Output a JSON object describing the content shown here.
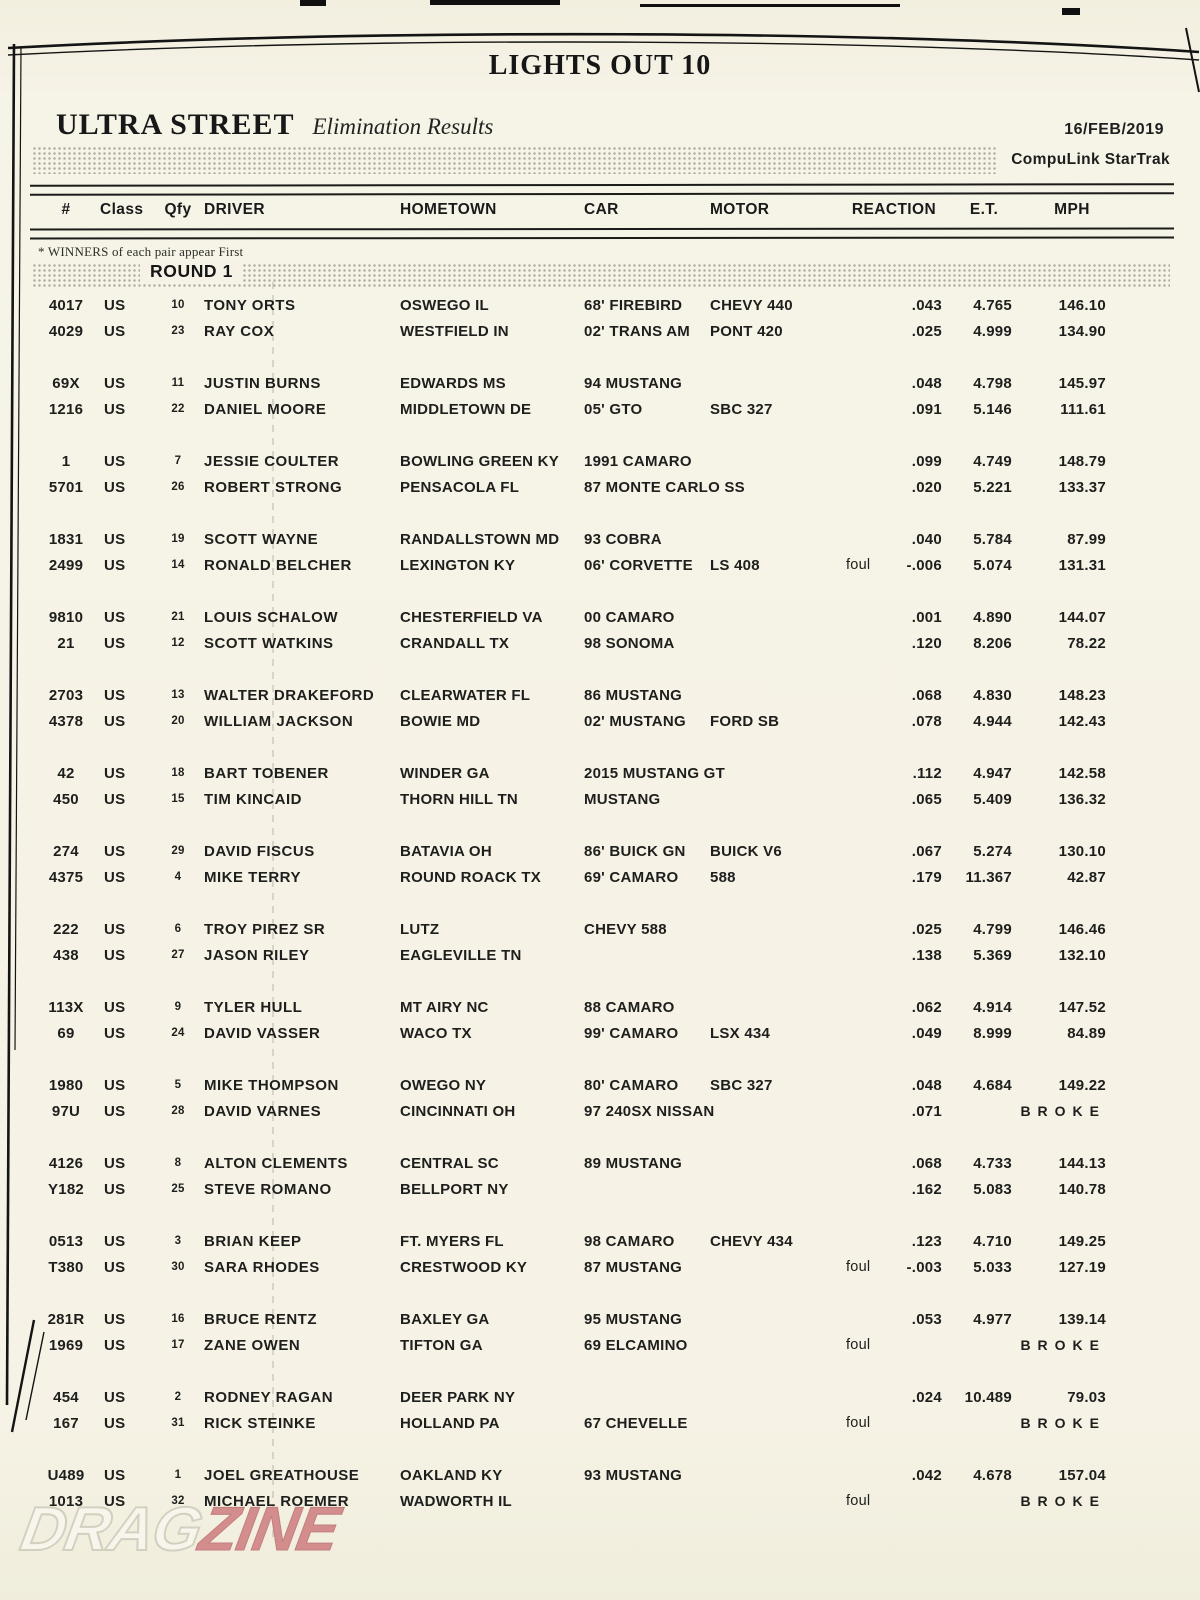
{
  "page": {
    "event_title": "LIGHTS OUT 10",
    "class_title": "ULTRA STREET",
    "subtitle": "Elimination Results",
    "date": "16/FEB/2019",
    "timing_brand": "CompuLink  StarTrak",
    "note": "* WINNERS of each pair appear First",
    "round_label": "ROUND 1"
  },
  "columns": {
    "num": "#",
    "cls": "Class",
    "qfy": "Qfy",
    "driver": "DRIVER",
    "home": "HOMETOWN",
    "car": "CAR",
    "motor": "MOTOR",
    "react": "REACTION",
    "et": "E.T.",
    "mph": "MPH"
  },
  "labels": {
    "broke": "BROKE"
  },
  "watermark": {
    "part1": "DRAG",
    "part2": "ZINE"
  },
  "rows": [
    {
      "num": "4017",
      "cls": "US",
      "qfy": "10",
      "driver": "TONY ORTS",
      "home": "OSWEGO IL",
      "car": "68' FIREBIRD",
      "motor": "CHEVY 440",
      "foul": "",
      "re": ".043",
      "et": "4.765",
      "mph": "146.10",
      "broke": false
    },
    {
      "num": "4029",
      "cls": "US",
      "qfy": "23",
      "driver": "RAY COX",
      "home": "WESTFIELD IN",
      "car": "02' TRANS AM",
      "motor": "PONT 420",
      "foul": "",
      "re": ".025",
      "et": "4.999",
      "mph": "134.90",
      "broke": false
    },
    {
      "num": "69X",
      "cls": "US",
      "qfy": "11",
      "driver": "JUSTIN BURNS",
      "home": "EDWARDS MS",
      "car": "94 MUSTANG",
      "motor": "",
      "foul": "",
      "re": ".048",
      "et": "4.798",
      "mph": "145.97",
      "broke": false
    },
    {
      "num": "1216",
      "cls": "US",
      "qfy": "22",
      "driver": "DANIEL MOORE",
      "home": "MIDDLETOWN DE",
      "car": "05' GTO",
      "motor": "SBC 327",
      "foul": "",
      "re": ".091",
      "et": "5.146",
      "mph": "111.61",
      "broke": false
    },
    {
      "num": "1",
      "cls": "US",
      "qfy": "7",
      "driver": "JESSIE COULTER",
      "home": "BOWLING GREEN KY",
      "car": "1991 CAMARO",
      "motor": "",
      "foul": "",
      "re": ".099",
      "et": "4.749",
      "mph": "148.79",
      "broke": false
    },
    {
      "num": "5701",
      "cls": "US",
      "qfy": "26",
      "driver": "ROBERT STRONG",
      "home": "PENSACOLA FL",
      "car": "87 MONTE CARLO SS",
      "motor": "",
      "foul": "",
      "re": ".020",
      "et": "5.221",
      "mph": "133.37",
      "broke": false
    },
    {
      "num": "1831",
      "cls": "US",
      "qfy": "19",
      "driver": "SCOTT WAYNE",
      "home": "RANDALLSTOWN MD",
      "car": "93 COBRA",
      "motor": "",
      "foul": "",
      "re": ".040",
      "et": "5.784",
      "mph": "87.99",
      "broke": false
    },
    {
      "num": "2499",
      "cls": "US",
      "qfy": "14",
      "driver": "RONALD BELCHER",
      "home": "LEXINGTON KY",
      "car": "06' CORVETTE",
      "motor": "LS 408",
      "foul": "foul",
      "re": "-.006",
      "et": "5.074",
      "mph": "131.31",
      "broke": false
    },
    {
      "num": "9810",
      "cls": "US",
      "qfy": "21",
      "driver": "LOUIS SCHALOW",
      "home": "CHESTERFIELD VA",
      "car": "00 CAMARO",
      "motor": "",
      "foul": "",
      "re": ".001",
      "et": "4.890",
      "mph": "144.07",
      "broke": false
    },
    {
      "num": "21",
      "cls": "US",
      "qfy": "12",
      "driver": "SCOTT WATKINS",
      "home": "CRANDALL TX",
      "car": "98 SONOMA",
      "motor": "",
      "foul": "",
      "re": ".120",
      "et": "8.206",
      "mph": "78.22",
      "broke": false
    },
    {
      "num": "2703",
      "cls": "US",
      "qfy": "13",
      "driver": "WALTER DRAKEFORD",
      "home": "CLEARWATER FL",
      "car": "86 MUSTANG",
      "motor": "",
      "foul": "",
      "re": ".068",
      "et": "4.830",
      "mph": "148.23",
      "broke": false
    },
    {
      "num": "4378",
      "cls": "US",
      "qfy": "20",
      "driver": "WILLIAM JACKSON",
      "home": "BOWIE MD",
      "car": "02' MUSTANG",
      "motor": "FORD SB",
      "foul": "",
      "re": ".078",
      "et": "4.944",
      "mph": "142.43",
      "broke": false
    },
    {
      "num": "42",
      "cls": "US",
      "qfy": "18",
      "driver": "BART TOBENER",
      "home": "WINDER GA",
      "car": "2015 MUSTANG GT",
      "motor": "",
      "foul": "",
      "re": ".112",
      "et": "4.947",
      "mph": "142.58",
      "broke": false
    },
    {
      "num": "450",
      "cls": "US",
      "qfy": "15",
      "driver": "TIM KINCAID",
      "home": "THORN HILL TN",
      "car": "MUSTANG",
      "motor": "",
      "foul": "",
      "re": ".065",
      "et": "5.409",
      "mph": "136.32",
      "broke": false
    },
    {
      "num": "274",
      "cls": "US",
      "qfy": "29",
      "driver": "DAVID FISCUS",
      "home": "BATAVIA OH",
      "car": "86' BUICK GN",
      "motor": "BUICK V6",
      "foul": "",
      "re": ".067",
      "et": "5.274",
      "mph": "130.10",
      "broke": false
    },
    {
      "num": "4375",
      "cls": "US",
      "qfy": "4",
      "driver": "MIKE TERRY",
      "home": "ROUND ROACK TX",
      "car": "69' CAMARO",
      "motor": "588",
      "foul": "",
      "re": ".179",
      "et": "11.367",
      "mph": "42.87",
      "broke": false
    },
    {
      "num": "222",
      "cls": "US",
      "qfy": "6",
      "driver": "TROY PIREZ SR",
      "home": "LUTZ",
      "car": "CHEVY 588",
      "motor": "",
      "foul": "",
      "re": ".025",
      "et": "4.799",
      "mph": "146.46",
      "broke": false
    },
    {
      "num": "438",
      "cls": "US",
      "qfy": "27",
      "driver": "JASON RILEY",
      "home": "EAGLEVILLE TN",
      "car": "",
      "motor": "",
      "foul": "",
      "re": ".138",
      "et": "5.369",
      "mph": "132.10",
      "broke": false
    },
    {
      "num": "113X",
      "cls": "US",
      "qfy": "9",
      "driver": "TYLER HULL",
      "home": "MT AIRY NC",
      "car": "88 CAMARO",
      "motor": "",
      "foul": "",
      "re": ".062",
      "et": "4.914",
      "mph": "147.52",
      "broke": false
    },
    {
      "num": "69",
      "cls": "US",
      "qfy": "24",
      "driver": "DAVID VASSER",
      "home": "WACO TX",
      "car": "99' CAMARO",
      "motor": "LSX 434",
      "foul": "",
      "re": ".049",
      "et": "8.999",
      "mph": "84.89",
      "broke": false
    },
    {
      "num": "1980",
      "cls": "US",
      "qfy": "5",
      "driver": "MIKE THOMPSON",
      "home": "OWEGO NY",
      "car": "80' CAMARO",
      "motor": "SBC 327",
      "foul": "",
      "re": ".048",
      "et": "4.684",
      "mph": "149.22",
      "broke": false
    },
    {
      "num": "97U",
      "cls": "US",
      "qfy": "28",
      "driver": "DAVID VARNES",
      "home": "CINCINNATI OH",
      "car": "97 240SX NISSAN",
      "motor": "",
      "foul": "",
      "re": ".071",
      "et": "",
      "mph": "",
      "broke": true
    },
    {
      "num": "4126",
      "cls": "US",
      "qfy": "8",
      "driver": "ALTON CLEMENTS",
      "home": "CENTRAL SC",
      "car": "89 MUSTANG",
      "motor": "",
      "foul": "",
      "re": ".068",
      "et": "4.733",
      "mph": "144.13",
      "broke": false
    },
    {
      "num": "Y182",
      "cls": "US",
      "qfy": "25",
      "driver": "STEVE ROMANO",
      "home": "BELLPORT NY",
      "car": "",
      "motor": "",
      "foul": "",
      "re": ".162",
      "et": "5.083",
      "mph": "140.78",
      "broke": false
    },
    {
      "num": "0513",
      "cls": "US",
      "qfy": "3",
      "driver": "BRIAN KEEP",
      "home": "FT. MYERS FL",
      "car": "98 CAMARO",
      "motor": "CHEVY 434",
      "foul": "",
      "re": ".123",
      "et": "4.710",
      "mph": "149.25",
      "broke": false
    },
    {
      "num": "T380",
      "cls": "US",
      "qfy": "30",
      "driver": "SARA RHODES",
      "home": "CRESTWOOD KY",
      "car": "87 MUSTANG",
      "motor": "",
      "foul": "foul",
      "re": "-.003",
      "et": "5.033",
      "mph": "127.19",
      "broke": false
    },
    {
      "num": "281R",
      "cls": "US",
      "qfy": "16",
      "driver": "BRUCE RENTZ",
      "home": "BAXLEY GA",
      "car": "95 MUSTANG",
      "motor": "",
      "foul": "",
      "re": ".053",
      "et": "4.977",
      "mph": "139.14",
      "broke": false
    },
    {
      "num": "1969",
      "cls": "US",
      "qfy": "17",
      "driver": "ZANE OWEN",
      "home": "TIFTON GA",
      "car": "69 ELCAMINO",
      "motor": "",
      "foul": "foul",
      "re": "",
      "et": "",
      "mph": "",
      "broke": true
    },
    {
      "num": "454",
      "cls": "US",
      "qfy": "2",
      "driver": "RODNEY RAGAN",
      "home": "DEER PARK NY",
      "car": "",
      "motor": "",
      "foul": "",
      "re": ".024",
      "et": "10.489",
      "mph": "79.03",
      "broke": false
    },
    {
      "num": "167",
      "cls": "US",
      "qfy": "31",
      "driver": "RICK STEINKE",
      "home": "HOLLAND PA",
      "car": "67 CHEVELLE",
      "motor": "",
      "foul": "foul",
      "re": "",
      "et": "",
      "mph": "",
      "broke": true
    },
    {
      "num": "U489",
      "cls": "US",
      "qfy": "1",
      "driver": "JOEL GREATHOUSE",
      "home": "OAKLAND KY",
      "car": "93 MUSTANG",
      "motor": "",
      "foul": "",
      "re": ".042",
      "et": "4.678",
      "mph": "157.04",
      "broke": false
    },
    {
      "num": "1013",
      "cls": "US",
      "qfy": "32",
      "driver": "MICHAEL ROEMER",
      "home": "WADWORTH IL",
      "car": "",
      "motor": "",
      "foul": "foul",
      "re": "",
      "et": "",
      "mph": "",
      "broke": true
    }
  ]
}
